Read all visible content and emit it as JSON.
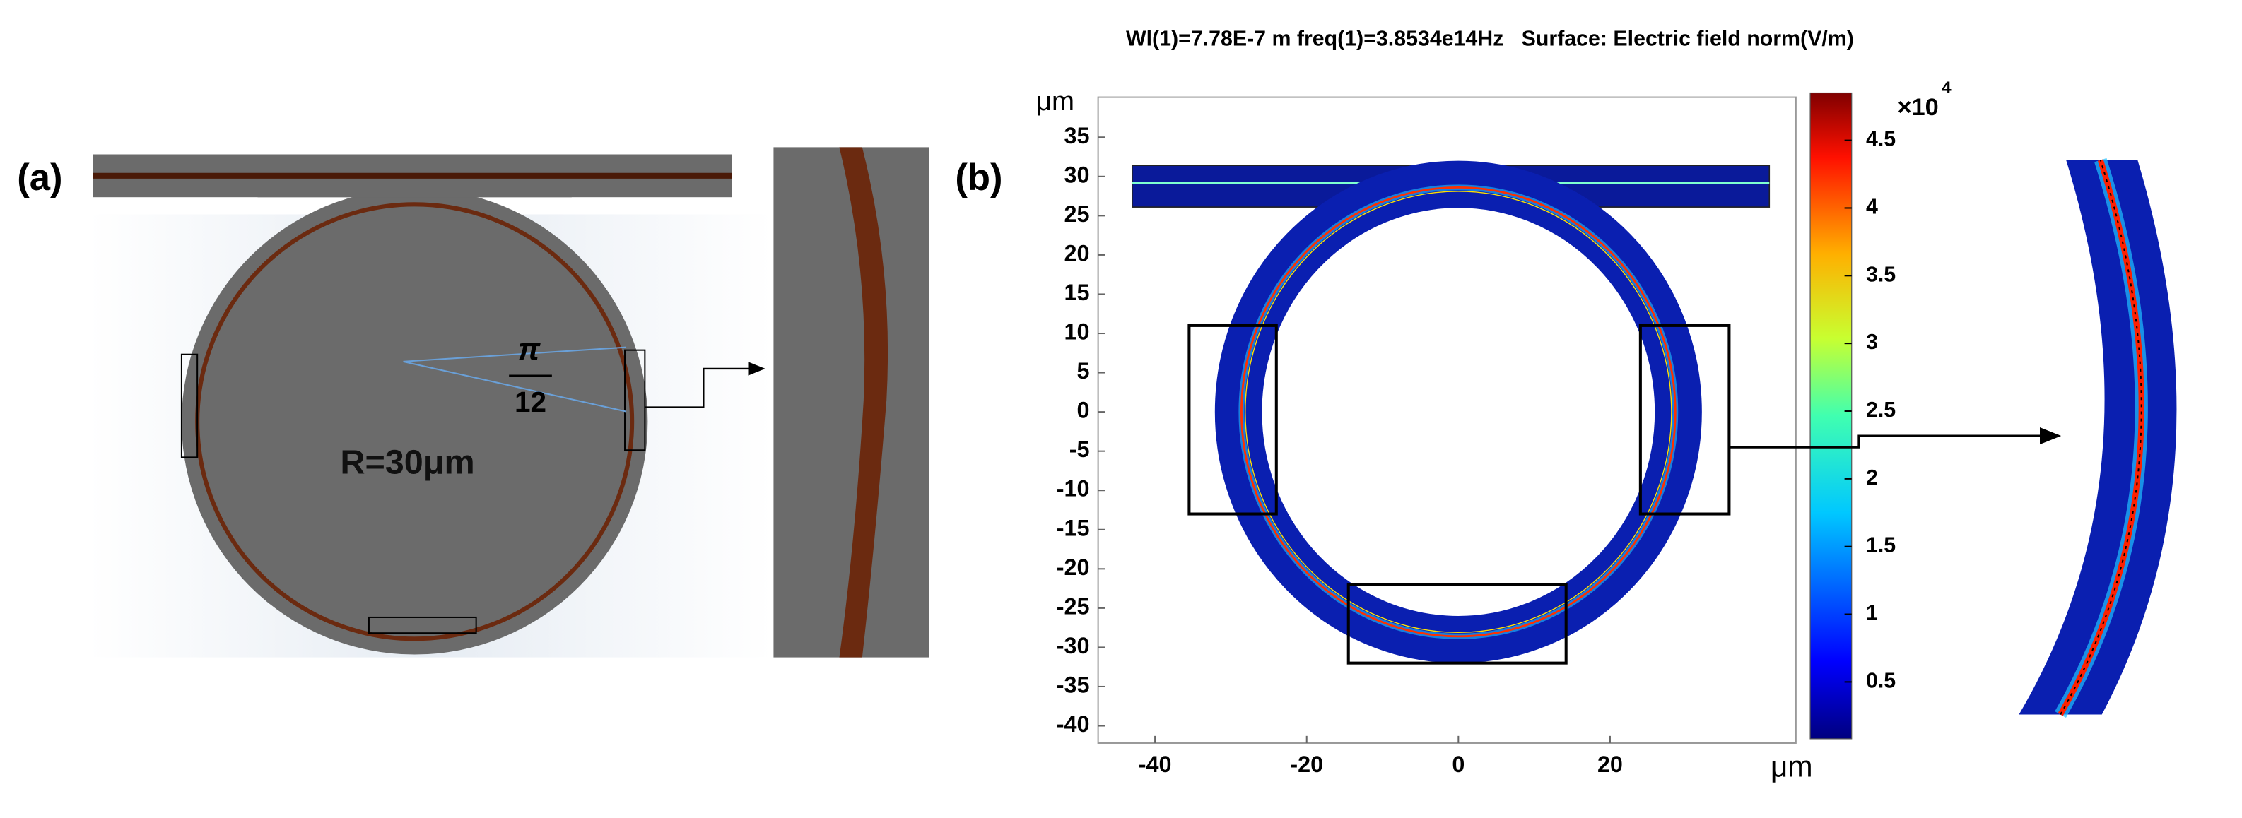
{
  "panel_a": {
    "label": "(a)",
    "radius_label": "R=30μm",
    "angle_numerator": "π",
    "angle_denominator": "12"
  },
  "chart_data": {
    "type": "heatmap",
    "panel_label": "(b)",
    "title": "Wl(1)=7.78E-7 m freq(1)=3.8534e14Hz   Surface: Electric field norm(V/m)",
    "x_label": "μm",
    "y_label": "μm",
    "xlim": [
      -47.5,
      44.5
    ],
    "ylim": [
      -42.2,
      40.1
    ],
    "xticks": [
      -40,
      -20,
      0,
      20
    ],
    "yticks": [
      35,
      30,
      25,
      20,
      15,
      10,
      5,
      0,
      -5,
      -10,
      -15,
      -20,
      -25,
      -30,
      -35,
      -40
    ],
    "colorbar": {
      "clim": [
        0.08,
        4.85
      ],
      "ticks": [
        0.5,
        1,
        1.5,
        2,
        2.5,
        3,
        3.5,
        4,
        4.5
      ],
      "multiplier": "×10",
      "exponent": "4"
    }
  }
}
